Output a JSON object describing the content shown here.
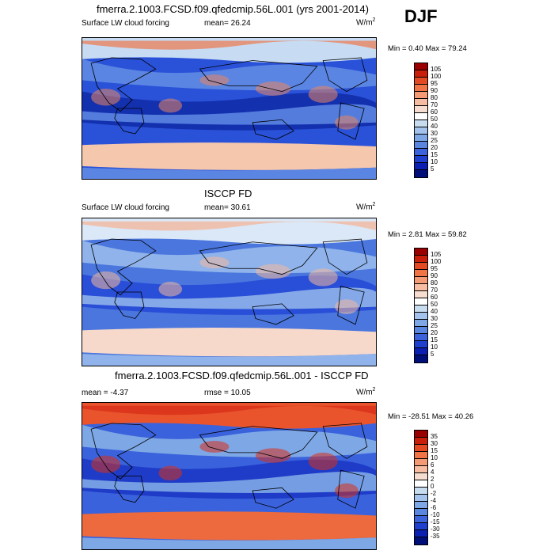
{
  "season": "DJF",
  "panels": [
    {
      "title": "fmerra.2.1003.FCSD.f09.qfedcmip.56L.001 (yrs 2001-2014)",
      "left_label": "Surface LW cloud forcing",
      "mid_label": "mean=  26.24",
      "units": "W/m",
      "units_sup": "2",
      "minmax": "Min =  0.40 Max =  79.24",
      "levels": [
        "105",
        "100",
        "95",
        "90",
        "80",
        "70",
        "60",
        "50",
        "40",
        "30",
        "25",
        "20",
        "15",
        "10",
        "5"
      ],
      "colors": [
        "#9b0000",
        "#c81e0a",
        "#e34a24",
        "#f07446",
        "#f49a74",
        "#f7bda2",
        "#f7ddd0",
        "#ffffff",
        "#c8dcf0",
        "#a3c3ec",
        "#7ea7e6",
        "#5a86e0",
        "#3c63dc",
        "#1f3fcf",
        "#0b1fb2",
        "#000e7a"
      ],
      "styles": {
        "base": "#2a52d8",
        "mid": "#5b85e2",
        "band": "#f5c7ad",
        "polar": "#c7dcf3",
        "hot": "#e98560",
        "deep": "#0f2aa8"
      }
    },
    {
      "title": "ISCCP FD",
      "left_label": "Surface LW cloud forcing",
      "mid_label": "mean=  30.61",
      "units": "W/m",
      "units_sup": "2",
      "minmax": "Min =  2.81 Max =  59.82",
      "levels": [
        "105",
        "100",
        "95",
        "90",
        "80",
        "70",
        "60",
        "50",
        "40",
        "30",
        "25",
        "20",
        "15",
        "10",
        "5"
      ],
      "colors": [
        "#9b0000",
        "#c81e0a",
        "#e34a24",
        "#f07446",
        "#f49a74",
        "#f7bda2",
        "#f7ddd0",
        "#ffffff",
        "#c8dcf0",
        "#a3c3ec",
        "#7ea7e6",
        "#5a86e0",
        "#3c63dc",
        "#1f3fcf",
        "#0b1fb2",
        "#000e7a"
      ],
      "styles": {
        "base": "#4a76de",
        "mid": "#8fb3ea",
        "band": "#f6d9cb",
        "polar": "#dbe8f7",
        "hot": "#f2b89f",
        "deep": "#2348d6"
      }
    },
    {
      "title": "fmerra.2.1003.FCSD.f09.qfedcmip.56L.001 - ISCCP FD",
      "left_label": "mean =  -4.37",
      "mid_label": "rmse =  10.05",
      "units": "W/m",
      "units_sup": "2",
      "minmax": "Min = -28.51 Max =  40.26",
      "levels": [
        "35",
        "30",
        "15",
        "10",
        "6",
        "4",
        "2",
        "0",
        "-2",
        "-4",
        "-6",
        "-10",
        "-15",
        "-30",
        "-35"
      ],
      "colors": [
        "#9b0000",
        "#c81e0a",
        "#e34a24",
        "#f07446",
        "#f49a74",
        "#f7bda2",
        "#f7ddd0",
        "#ffffff",
        "#c8dcf0",
        "#a3c3ec",
        "#7ea7e6",
        "#5a86e0",
        "#3c63dc",
        "#1f3fcf",
        "#0b1fb2",
        "#000e7a"
      ],
      "styles": {
        "base": "#3a62dc",
        "mid": "#7ea7e6",
        "band": "#ec6a3e",
        "polar": "#e9542c",
        "hot": "#d8301a",
        "deep": "#1a36c4"
      }
    }
  ],
  "chart_data": [
    {
      "type": "heatmap",
      "title": "fmerra.2.1003.FCSD.f09.qfedcmip.56L.001 (yrs 2001-2014)",
      "variable": "Surface LW cloud forcing",
      "units": "W/m2",
      "mean": 26.24,
      "min": 0.4,
      "max": 79.24,
      "contour_levels": [
        5,
        10,
        15,
        20,
        25,
        30,
        40,
        50,
        60,
        70,
        80,
        90,
        95,
        100,
        105
      ]
    },
    {
      "type": "heatmap",
      "title": "ISCCP FD",
      "variable": "Surface LW cloud forcing",
      "units": "W/m2",
      "mean": 30.61,
      "min": 2.81,
      "max": 59.82,
      "contour_levels": [
        5,
        10,
        15,
        20,
        25,
        30,
        40,
        50,
        60,
        70,
        80,
        90,
        95,
        100,
        105
      ]
    },
    {
      "type": "heatmap",
      "title": "fmerra.2.1003.FCSD.f09.qfedcmip.56L.001 - ISCCP FD",
      "units": "W/m2",
      "mean": -4.37,
      "rmse": 10.05,
      "min": -28.51,
      "max": 40.26,
      "contour_levels": [
        -35,
        -30,
        -15,
        -10,
        -6,
        -4,
        -2,
        0,
        2,
        4,
        6,
        10,
        15,
        30,
        35
      ]
    }
  ]
}
